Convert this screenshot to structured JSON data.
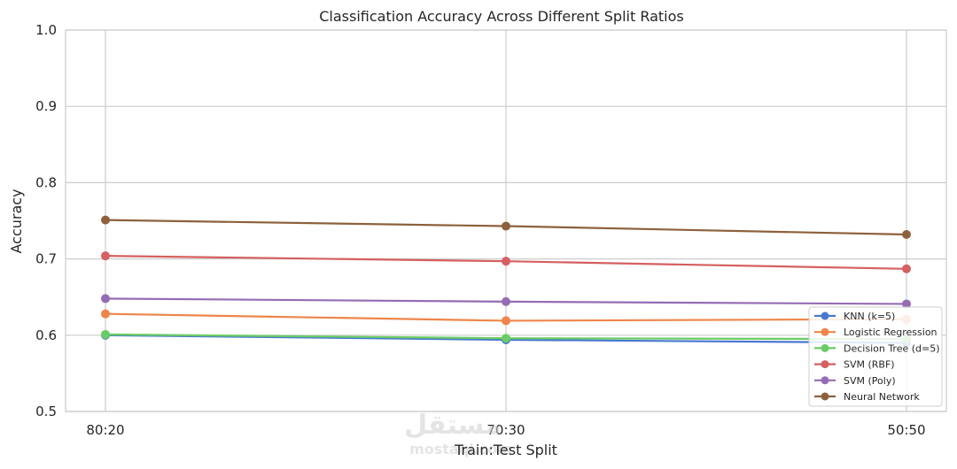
{
  "chart_data": {
    "type": "line",
    "title": "Classification Accuracy Across Different Split Ratios",
    "xlabel": "Train:Test Split",
    "ylabel": "Accuracy",
    "categories": [
      "80:20",
      "70:30",
      "50:50"
    ],
    "ylim": [
      0.5,
      1.0
    ],
    "yticks": [
      "0.5",
      "0.6",
      "0.7",
      "0.8",
      "0.9",
      "1.0"
    ],
    "grid": true,
    "legend_position": "lower-right",
    "series": [
      {
        "name": "KNN (k=5)",
        "color": "#4878d0",
        "values": [
          0.6,
          0.594,
          0.59
        ]
      },
      {
        "name": "Logistic Regression",
        "color": "#ee854a",
        "values": [
          0.628,
          0.619,
          0.621
        ]
      },
      {
        "name": "Decision Tree (d=5)",
        "color": "#6acc64",
        "values": [
          0.601,
          0.596,
          0.595
        ]
      },
      {
        "name": "SVM (RBF)",
        "color": "#d65f5f",
        "values": [
          0.704,
          0.697,
          0.687
        ]
      },
      {
        "name": "SVM (Poly)",
        "color": "#956cb4",
        "values": [
          0.648,
          0.644,
          0.641
        ]
      },
      {
        "name": "Neural Network",
        "color": "#8c613c",
        "values": [
          0.751,
          0.743,
          0.732
        ]
      }
    ]
  },
  "watermark": {
    "text": "مستقل",
    "subtext": "mostaql.com"
  }
}
